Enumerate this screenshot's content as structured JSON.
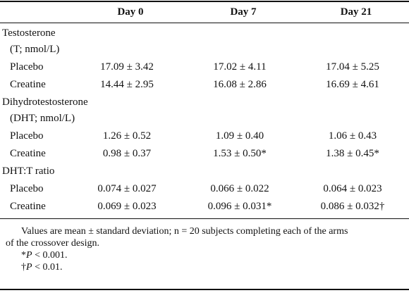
{
  "table": {
    "header": [
      "Day 0",
      "Day 7",
      "Day 21"
    ],
    "sections": [
      {
        "title": [
          "Testosterone",
          "(T; nmol/L)"
        ],
        "rows": [
          {
            "label": "Placebo",
            "cells": [
              "17.09 ± 3.42",
              "17.02 ± 4.11",
              "17.04 ± 5.25"
            ]
          },
          {
            "label": "Creatine",
            "cells": [
              "14.44 ± 2.95",
              "16.08 ± 2.86",
              "16.69 ± 4.61"
            ]
          }
        ]
      },
      {
        "title": [
          "Dihydrotestosterone",
          "(DHT; nmol/L)"
        ],
        "rows": [
          {
            "label": "Placebo",
            "cells": [
              "1.26 ± 0.52",
              "1.09 ± 0.40",
              "1.06 ± 0.43"
            ]
          },
          {
            "label": "Creatine",
            "cells": [
              "0.98 ± 0.37",
              "1.53 ± 0.50*",
              "1.38 ± 0.45*"
            ]
          }
        ]
      },
      {
        "title": [
          "DHT:T ratio"
        ],
        "rows": [
          {
            "label": "Placebo",
            "cells": [
              "0.074 ± 0.027",
              "0.066 ± 0.022",
              "0.064 ± 0.023"
            ]
          },
          {
            "label": "Creatine",
            "cells": [
              "0.069 ± 0.023",
              "0.096 ± 0.031*",
              "0.086 ± 0.032†"
            ]
          }
        ]
      }
    ],
    "footnotes": {
      "text": [
        "Values are mean ± standard deviation; n = 20 subjects completing each of the arms",
        "of the crossover design."
      ],
      "marks": [
        {
          "symbol": "*",
          "var": "P",
          "rest": " < 0.001."
        },
        {
          "symbol": "†",
          "var": "P",
          "rest": " < 0.01."
        }
      ]
    }
  }
}
